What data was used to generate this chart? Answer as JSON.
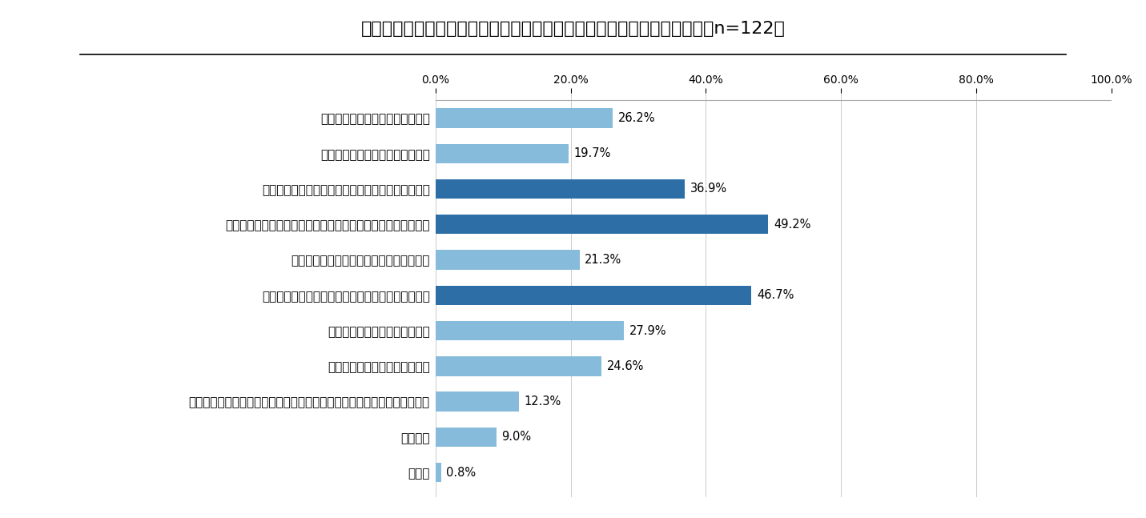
{
  "title": "新型コロナウイルスの影響が高卒採用にどのように影響していますか。（n=122）",
  "categories": [
    "高卒採用数の縮小を検討している",
    "高卒採用数の拡大を検討している",
    "高卒採用数の予定が立てられない状態となっている",
    "採用スケジュールの見込みが立たない・後ろ倒しになっている",
    "採用のための人員確保が困難になっている",
    "合同説明会など、採用イベントへの参加ができない",
    "学生・生徒との接点が減少した",
    "学校・先生との接点が減少した",
    "高卒新卒向け求人票作成など必要な事務手続きが進められない憸念がある",
    "特にない",
    "その他"
  ],
  "values": [
    26.2,
    19.7,
    36.9,
    49.2,
    21.3,
    46.7,
    27.9,
    24.6,
    12.3,
    9.0,
    0.8
  ],
  "bar_colors": [
    "#87BBDB",
    "#87BBDB",
    "#2E6EA6",
    "#2E6EA6",
    "#87BBDB",
    "#2E6EA6",
    "#87BBDB",
    "#87BBDB",
    "#87BBDB",
    "#87BBDB",
    "#87BBDB"
  ],
  "xlim": [
    0,
    100
  ],
  "xticks": [
    0,
    20,
    40,
    60,
    80,
    100
  ],
  "xticklabels": [
    "0.0%",
    "20.0%",
    "40.0%",
    "60.0%",
    "80.0%",
    "100.0%"
  ],
  "background_color": "#FFFFFF",
  "title_fontsize": 16,
  "label_fontsize": 11,
  "tick_fontsize": 10,
  "value_fontsize": 10.5
}
